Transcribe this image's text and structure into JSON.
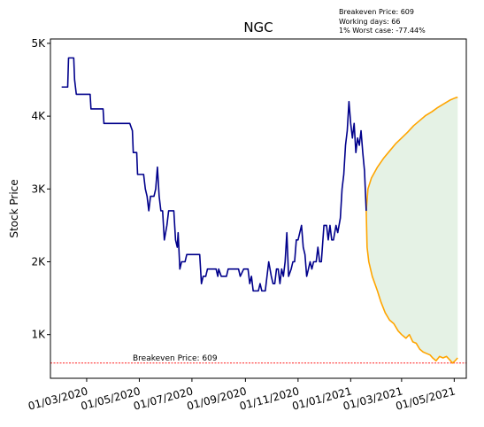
{
  "annotations": [
    "Breakeven Price: 609",
    "Working days: 66",
    "1% Worst case: -77.44%"
  ],
  "colors": {
    "history": "#00008b",
    "forecast": "#ffa500",
    "band": "#e5f2e5",
    "breakeven": "#ff0000"
  },
  "chart_data": {
    "type": "line",
    "title": "NGC",
    "xlabel": "",
    "ylabel": "Stock Price",
    "x_ticks": [
      "01/03/2020",
      "01/05/2020",
      "01/07/2020",
      "01/09/2020",
      "01/11/2020",
      "01/01/2021",
      "01/03/2021",
      "01/05/2021"
    ],
    "y_ticks": [
      "1K",
      "2K",
      "3K",
      "4K",
      "5K"
    ],
    "y_tick_values": [
      1000,
      2000,
      3000,
      4000,
      5000
    ],
    "ylim": [
      400,
      5060
    ],
    "xlim": [
      "2020-01-19",
      "2021-05-15"
    ],
    "grid": false,
    "breakeven": {
      "value": 609,
      "label": "Breakeven Price: 609"
    },
    "series": [
      {
        "role": "history",
        "points": [
          [
            "2020-02-01",
            4400
          ],
          [
            "2020-02-08",
            4400
          ],
          [
            "2020-02-09",
            4800
          ],
          [
            "2020-02-15",
            4800
          ],
          [
            "2020-02-16",
            4500
          ],
          [
            "2020-02-18",
            4300
          ],
          [
            "2020-03-05",
            4300
          ],
          [
            "2020-03-06",
            4100
          ],
          [
            "2020-03-20",
            4100
          ],
          [
            "2020-03-21",
            3900
          ],
          [
            "2020-04-20",
            3900
          ],
          [
            "2020-04-23",
            3800
          ],
          [
            "2020-04-24",
            3500
          ],
          [
            "2020-04-28",
            3500
          ],
          [
            "2020-04-29",
            3200
          ],
          [
            "2020-05-06",
            3200
          ],
          [
            "2020-05-08",
            3000
          ],
          [
            "2020-05-10",
            2900
          ],
          [
            "2020-05-12",
            2700
          ],
          [
            "2020-05-14",
            2900
          ],
          [
            "2020-05-18",
            2900
          ],
          [
            "2020-05-20",
            3000
          ],
          [
            "2020-05-22",
            3300
          ],
          [
            "2020-05-24",
            2900
          ],
          [
            "2020-05-26",
            2700
          ],
          [
            "2020-05-28",
            2700
          ],
          [
            "2020-05-30",
            2300
          ],
          [
            "2020-06-02",
            2500
          ],
          [
            "2020-06-04",
            2700
          ],
          [
            "2020-06-10",
            2700
          ],
          [
            "2020-06-12",
            2300
          ],
          [
            "2020-06-14",
            2200
          ],
          [
            "2020-06-15",
            2400
          ],
          [
            "2020-06-17",
            1900
          ],
          [
            "2020-06-19",
            2000
          ],
          [
            "2020-06-23",
            2000
          ],
          [
            "2020-06-25",
            2100
          ],
          [
            "2020-07-10",
            2100
          ],
          [
            "2020-07-12",
            1700
          ],
          [
            "2020-07-14",
            1800
          ],
          [
            "2020-07-17",
            1800
          ],
          [
            "2020-07-19",
            1900
          ],
          [
            "2020-07-29",
            1900
          ],
          [
            "2020-07-31",
            1800
          ],
          [
            "2020-08-01",
            1900
          ],
          [
            "2020-08-04",
            1800
          ],
          [
            "2020-08-10",
            1800
          ],
          [
            "2020-08-12",
            1900
          ],
          [
            "2020-08-24",
            1900
          ],
          [
            "2020-08-26",
            1800
          ],
          [
            "2020-08-30",
            1900
          ],
          [
            "2020-09-04",
            1900
          ],
          [
            "2020-09-06",
            1700
          ],
          [
            "2020-09-08",
            1800
          ],
          [
            "2020-09-10",
            1600
          ],
          [
            "2020-09-16",
            1600
          ],
          [
            "2020-09-18",
            1700
          ],
          [
            "2020-09-20",
            1600
          ],
          [
            "2020-09-24",
            1600
          ],
          [
            "2020-09-26",
            1800
          ],
          [
            "2020-09-28",
            2000
          ],
          [
            "2020-10-01",
            1800
          ],
          [
            "2020-10-03",
            1700
          ],
          [
            "2020-10-05",
            1700
          ],
          [
            "2020-10-07",
            1900
          ],
          [
            "2020-10-09",
            1900
          ],
          [
            "2020-10-11",
            1700
          ],
          [
            "2020-10-13",
            1900
          ],
          [
            "2020-10-15",
            1800
          ],
          [
            "2020-10-17",
            2000
          ],
          [
            "2020-10-19",
            2400
          ],
          [
            "2020-10-21",
            1800
          ],
          [
            "2020-10-24",
            1900
          ],
          [
            "2020-10-26",
            2000
          ],
          [
            "2020-10-28",
            2000
          ],
          [
            "2020-10-30",
            2300
          ],
          [
            "2020-11-01",
            2300
          ],
          [
            "2020-11-03",
            2400
          ],
          [
            "2020-11-05",
            2500
          ],
          [
            "2020-11-07",
            2200
          ],
          [
            "2020-11-09",
            2100
          ],
          [
            "2020-11-11",
            1800
          ],
          [
            "2020-11-13",
            1900
          ],
          [
            "2020-11-15",
            2000
          ],
          [
            "2020-11-17",
            1900
          ],
          [
            "2020-11-19",
            2000
          ],
          [
            "2020-11-22",
            2000
          ],
          [
            "2020-11-24",
            2200
          ],
          [
            "2020-11-26",
            2000
          ],
          [
            "2020-11-28",
            2000
          ],
          [
            "2020-12-01",
            2500
          ],
          [
            "2020-12-04",
            2500
          ],
          [
            "2020-12-06",
            2300
          ],
          [
            "2020-12-08",
            2500
          ],
          [
            "2020-12-10",
            2300
          ],
          [
            "2020-12-12",
            2300
          ],
          [
            "2020-12-15",
            2500
          ],
          [
            "2020-12-17",
            2400
          ],
          [
            "2020-12-20",
            2600
          ],
          [
            "2020-12-22",
            3000
          ],
          [
            "2020-12-24",
            3200
          ],
          [
            "2020-12-26",
            3600
          ],
          [
            "2020-12-28",
            3800
          ],
          [
            "2020-12-30",
            4200
          ],
          [
            "2021-01-01",
            3900
          ],
          [
            "2021-01-03",
            3700
          ],
          [
            "2021-01-05",
            3900
          ],
          [
            "2021-01-07",
            3500
          ],
          [
            "2021-01-09",
            3700
          ],
          [
            "2021-01-11",
            3600
          ],
          [
            "2021-01-13",
            3800
          ],
          [
            "2021-01-15",
            3500
          ],
          [
            "2021-01-17",
            3250
          ],
          [
            "2021-01-19",
            2700
          ]
        ]
      },
      {
        "role": "forecast-upper",
        "points": [
          [
            "2021-01-19",
            2700
          ],
          [
            "2021-01-21",
            3000
          ],
          [
            "2021-01-25",
            3150
          ],
          [
            "2021-02-01",
            3300
          ],
          [
            "2021-02-08",
            3420
          ],
          [
            "2021-02-15",
            3520
          ],
          [
            "2021-02-22",
            3620
          ],
          [
            "2021-03-01",
            3700
          ],
          [
            "2021-03-08",
            3780
          ],
          [
            "2021-03-15",
            3870
          ],
          [
            "2021-03-22",
            3940
          ],
          [
            "2021-03-29",
            4010
          ],
          [
            "2021-04-05",
            4060
          ],
          [
            "2021-04-12",
            4120
          ],
          [
            "2021-04-19",
            4170
          ],
          [
            "2021-04-26",
            4220
          ],
          [
            "2021-05-02",
            4250
          ],
          [
            "2021-05-05",
            4260
          ]
        ]
      },
      {
        "role": "forecast-lower",
        "points": [
          [
            "2021-01-19",
            2700
          ],
          [
            "2021-01-20",
            2200
          ],
          [
            "2021-01-22",
            2000
          ],
          [
            "2021-01-26",
            1800
          ],
          [
            "2021-02-01",
            1600
          ],
          [
            "2021-02-05",
            1450
          ],
          [
            "2021-02-10",
            1300
          ],
          [
            "2021-02-15",
            1200
          ],
          [
            "2021-02-20",
            1150
          ],
          [
            "2021-02-25",
            1050
          ],
          [
            "2021-03-01",
            1000
          ],
          [
            "2021-03-06",
            950
          ],
          [
            "2021-03-10",
            1000
          ],
          [
            "2021-03-14",
            900
          ],
          [
            "2021-03-18",
            880
          ],
          [
            "2021-03-22",
            800
          ],
          [
            "2021-03-26",
            760
          ],
          [
            "2021-03-30",
            740
          ],
          [
            "2021-04-03",
            720
          ],
          [
            "2021-04-06",
            680
          ],
          [
            "2021-04-10",
            640
          ],
          [
            "2021-04-14",
            700
          ],
          [
            "2021-04-18",
            680
          ],
          [
            "2021-04-22",
            700
          ],
          [
            "2021-04-26",
            650
          ],
          [
            "2021-04-29",
            609
          ],
          [
            "2021-05-02",
            640
          ],
          [
            "2021-05-05",
            680
          ]
        ]
      }
    ]
  }
}
